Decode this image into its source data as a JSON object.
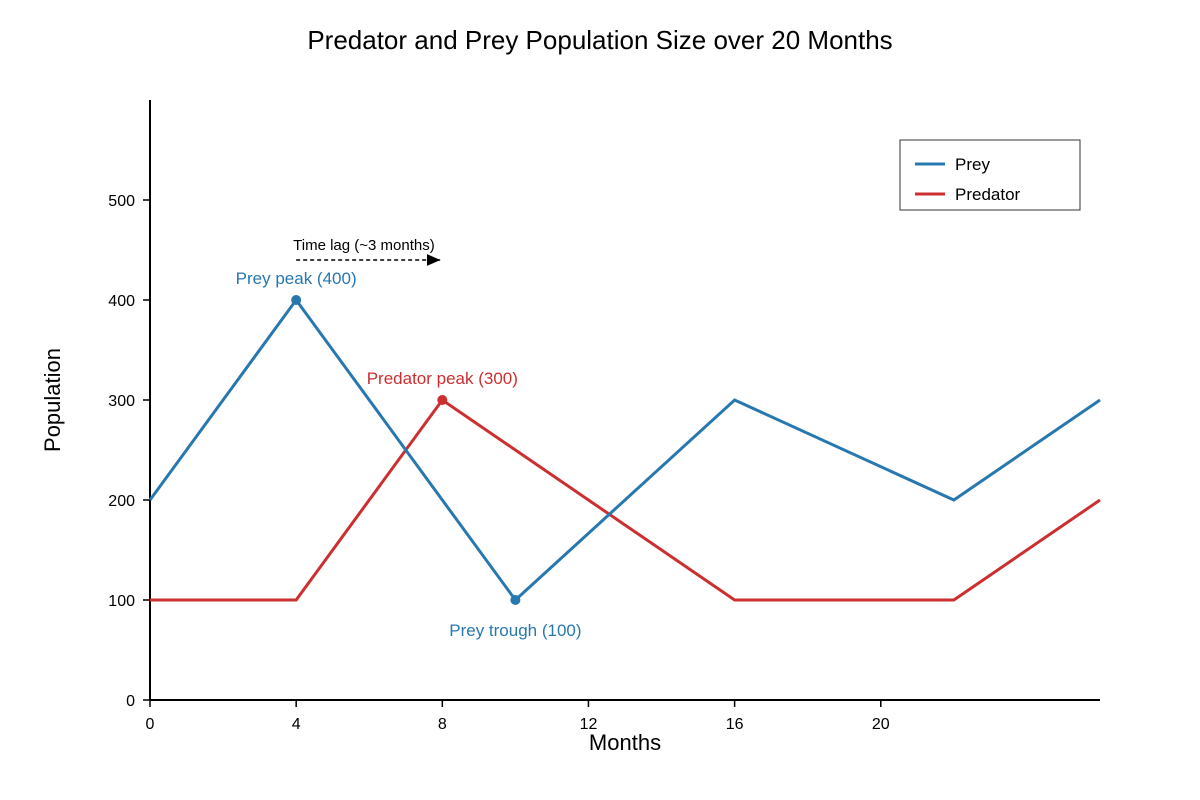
{
  "chart_data": {
    "type": "line",
    "title": "Predator and Prey Population Size over 20 Months",
    "xlabel": "Months",
    "ylabel": "Population",
    "xlim": [
      0,
      26
    ],
    "ylim": [
      0,
      600
    ],
    "x_ticks": [
      0,
      4,
      8,
      12,
      16,
      20
    ],
    "y_ticks": [
      0,
      100,
      200,
      300,
      400,
      500
    ],
    "grid": false,
    "legend_position": "top-right",
    "series": [
      {
        "name": "Prey",
        "color": "#2878b0",
        "x": [
          0,
          4,
          10,
          16,
          22,
          26
        ],
        "y": [
          200,
          400,
          100,
          300,
          200,
          300
        ]
      },
      {
        "name": "Predator",
        "color": "#cc2f30",
        "x": [
          0,
          4,
          8,
          16,
          22,
          26
        ],
        "y": [
          100,
          100,
          300,
          100,
          100,
          200
        ]
      }
    ],
    "highlights": [
      {
        "series": "Prey",
        "x": 4,
        "y": 400,
        "label": "Prey peak (400)"
      },
      {
        "series": "Predator",
        "x": 8,
        "y": 300,
        "label": "Predator peak (300)"
      },
      {
        "series": "Prey",
        "x": 10,
        "y": 100,
        "label": "Prey trough (100)"
      }
    ],
    "time_lag": {
      "label": "Time lag (~3 months)",
      "from_x": 4,
      "to_x": 8,
      "y": 440
    }
  }
}
